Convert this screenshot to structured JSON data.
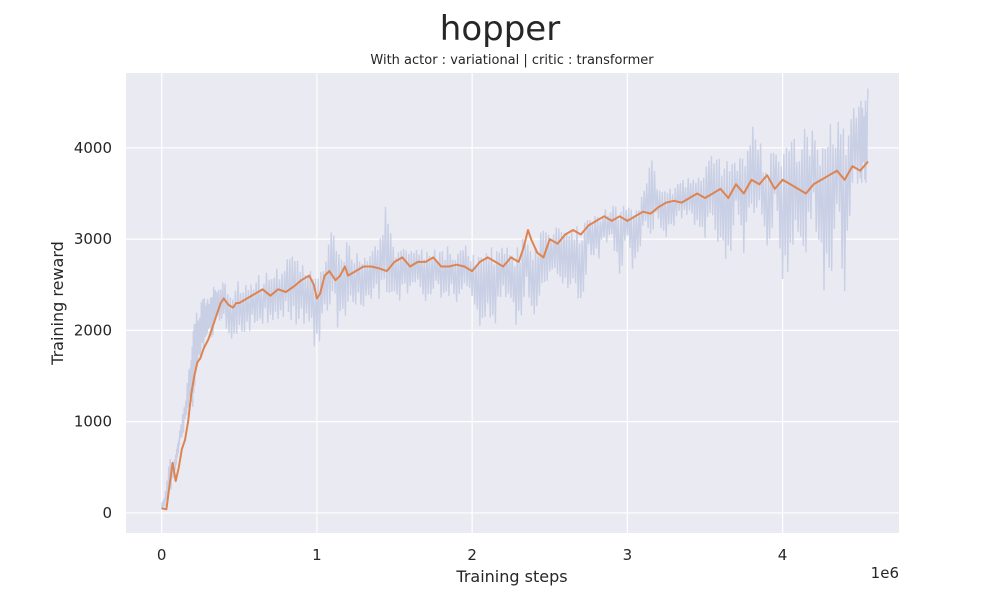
{
  "chart_data": {
    "type": "line",
    "title": "hopper",
    "subtitle": "With actor : variational | critic : transformer",
    "xlabel": "Training steps",
    "ylabel": "Training reward",
    "x_offset_label": "1e6",
    "xlim": [
      -0.23,
      4.75
    ],
    "ylim": [
      -220,
      4820
    ],
    "xticks": [
      0,
      1,
      2,
      3,
      4
    ],
    "xtick_labels": [
      "0",
      "1",
      "2",
      "3",
      "4"
    ],
    "yticks": [
      0,
      1000,
      2000,
      3000,
      4000
    ],
    "ytick_labels": [
      "0",
      "1000",
      "2000",
      "3000",
      "4000"
    ],
    "grid": true,
    "legend": "none",
    "colors": {
      "background": "#eaeaf2",
      "grid": "#ffffff",
      "raw": "#c7cfe4",
      "smoothed": "#dd8452"
    },
    "series": [
      {
        "kind": "raw",
        "x": [
          0.0,
          0.02,
          0.05,
          0.08,
          0.1,
          0.12,
          0.15,
          0.18,
          0.2,
          0.22,
          0.25,
          0.28,
          0.3,
          0.33,
          0.36,
          0.4,
          0.45,
          0.5,
          0.55,
          0.6,
          0.65,
          0.7,
          0.75,
          0.8,
          0.85,
          0.9,
          0.95,
          1.0,
          1.05,
          1.1,
          1.15,
          1.2,
          1.25,
          1.3,
          1.35,
          1.4,
          1.45,
          1.5,
          1.55,
          1.6,
          1.65,
          1.7,
          1.75,
          1.8,
          1.85,
          1.9,
          1.95,
          2.0,
          2.05,
          2.1,
          2.15,
          2.2,
          2.25,
          2.3,
          2.35,
          2.4,
          2.45,
          2.5,
          2.55,
          2.6,
          2.65,
          2.7,
          2.75,
          2.8,
          2.85,
          2.9,
          2.95,
          3.0,
          3.05,
          3.1,
          3.15,
          3.2,
          3.25,
          3.3,
          3.35,
          3.4,
          3.45,
          3.5,
          3.55,
          3.6,
          3.65,
          3.7,
          3.75,
          3.8,
          3.85,
          3.9,
          3.95,
          4.0,
          4.05,
          4.1,
          4.15,
          4.2,
          4.25,
          4.3,
          4.35,
          4.4,
          4.45,
          4.5,
          4.53,
          4.55
        ],
        "low": [
          20,
          20,
          100,
          300,
          500,
          700,
          850,
          1100,
          950,
          1300,
          1500,
          1700,
          1750,
          1800,
          1900,
          1950,
          1450,
          1700,
          1800,
          1850,
          1900,
          2000,
          1950,
          2000,
          1850,
          1900,
          1950,
          1450,
          2050,
          2100,
          1700,
          2150,
          2050,
          2100,
          2200,
          2150,
          2200,
          2150,
          2200,
          2250,
          2350,
          2150,
          2300,
          2200,
          2250,
          2100,
          2300,
          2200,
          1800,
          2050,
          1850,
          2200,
          2150,
          1700,
          2400,
          1600,
          2200,
          2500,
          2450,
          2250,
          2350,
          2000,
          2700,
          2600,
          2800,
          2900,
          2350,
          2850,
          2350,
          2950,
          2700,
          3100,
          2900,
          3000,
          3100,
          3100,
          2900,
          2600,
          2950,
          2600,
          2300,
          3300,
          2350,
          2900,
          3000,
          2300,
          3200,
          1950,
          2100,
          2700,
          2350,
          3100,
          2050,
          2100,
          2700,
          2000,
          3200,
          3300,
          3350,
          3400
        ],
        "high": [
          150,
          200,
          650,
          600,
          800,
          1000,
          1300,
          1700,
          2100,
          2300,
          2400,
          2450,
          2500,
          2550,
          2600,
          2600,
          2650,
          2650,
          2700,
          2700,
          2700,
          2750,
          2800,
          2900,
          2950,
          2800,
          2850,
          2800,
          2900,
          3300,
          3000,
          3100,
          2950,
          2950,
          3000,
          3050,
          3650,
          3000,
          3050,
          3000,
          3000,
          2950,
          2950,
          3000,
          3000,
          2950,
          3050,
          2950,
          3000,
          3000,
          3050,
          3050,
          2950,
          3100,
          3150,
          3150,
          3200,
          3150,
          3250,
          3300,
          3250,
          3300,
          3350,
          3400,
          3400,
          3450,
          3500,
          3500,
          3550,
          3550,
          4200,
          3600,
          3600,
          3650,
          3700,
          3750,
          3800,
          4150,
          4000,
          4100,
          4250,
          3900,
          4150,
          4400,
          4300,
          3950,
          4250,
          4450,
          4300,
          4350,
          4450,
          4400,
          4500,
          4550,
          4550,
          4600,
          4650,
          4700,
          4650,
          4650
        ]
      },
      {
        "kind": "smoothed",
        "x": [
          0.0,
          0.03,
          0.05,
          0.07,
          0.09,
          0.11,
          0.13,
          0.15,
          0.17,
          0.19,
          0.21,
          0.23,
          0.25,
          0.27,
          0.3,
          0.32,
          0.35,
          0.38,
          0.4,
          0.43,
          0.46,
          0.48,
          0.5,
          0.55,
          0.6,
          0.65,
          0.7,
          0.75,
          0.8,
          0.85,
          0.9,
          0.95,
          0.98,
          1.0,
          1.02,
          1.05,
          1.08,
          1.12,
          1.15,
          1.18,
          1.2,
          1.25,
          1.3,
          1.35,
          1.4,
          1.45,
          1.5,
          1.55,
          1.6,
          1.65,
          1.7,
          1.75,
          1.8,
          1.85,
          1.9,
          1.95,
          2.0,
          2.05,
          2.1,
          2.15,
          2.2,
          2.25,
          2.3,
          2.33,
          2.36,
          2.38,
          2.42,
          2.46,
          2.5,
          2.55,
          2.6,
          2.65,
          2.7,
          2.75,
          2.8,
          2.85,
          2.9,
          2.95,
          3.0,
          3.05,
          3.1,
          3.15,
          3.2,
          3.25,
          3.3,
          3.35,
          3.4,
          3.45,
          3.5,
          3.55,
          3.6,
          3.65,
          3.7,
          3.75,
          3.8,
          3.85,
          3.9,
          3.95,
          4.0,
          4.05,
          4.1,
          4.15,
          4.2,
          4.25,
          4.3,
          4.35,
          4.4,
          4.45,
          4.5,
          4.55
        ],
        "y": [
          50,
          40,
          300,
          550,
          350,
          500,
          700,
          800,
          1000,
          1300,
          1500,
          1650,
          1700,
          1800,
          1900,
          2000,
          2150,
          2300,
          2350,
          2280,
          2250,
          2300,
          2300,
          2350,
          2400,
          2450,
          2380,
          2450,
          2420,
          2480,
          2550,
          2600,
          2500,
          2350,
          2400,
          2600,
          2650,
          2550,
          2600,
          2700,
          2600,
          2650,
          2700,
          2700,
          2680,
          2650,
          2750,
          2800,
          2700,
          2750,
          2750,
          2800,
          2700,
          2700,
          2720,
          2700,
          2650,
          2750,
          2800,
          2750,
          2700,
          2800,
          2750,
          2900,
          3100,
          3000,
          2850,
          2800,
          3000,
          2950,
          3050,
          3100,
          3050,
          3150,
          3200,
          3250,
          3200,
          3250,
          3200,
          3250,
          3300,
          3280,
          3350,
          3400,
          3420,
          3400,
          3450,
          3500,
          3450,
          3500,
          3550,
          3450,
          3600,
          3500,
          3650,
          3600,
          3700,
          3550,
          3650,
          3600,
          3550,
          3500,
          3600,
          3650,
          3700,
          3750,
          3650,
          3800,
          3750,
          3850
        ]
      }
    ]
  }
}
